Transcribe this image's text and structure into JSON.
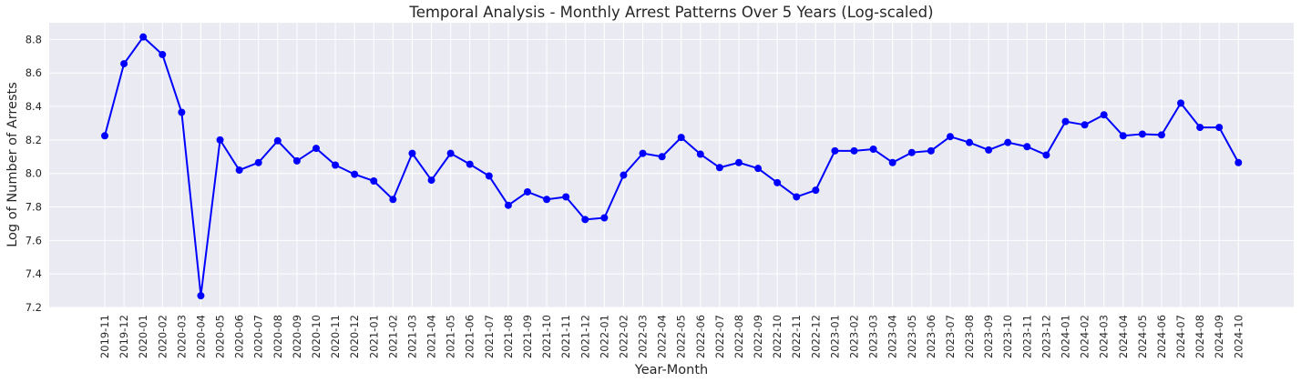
{
  "chart_data": {
    "type": "line",
    "title": "Temporal Analysis - Monthly Arrest Patterns Over 5 Years (Log-scaled)",
    "xlabel": "Year-Month",
    "ylabel": "Log of Number of Arrests",
    "ylim": [
      7.2,
      8.9
    ],
    "yticks": [
      7.2,
      7.4,
      7.6,
      7.8,
      8.0,
      8.2,
      8.4,
      8.6,
      8.8
    ],
    "ytick_labels": [
      "7.2",
      "7.4",
      "7.6",
      "7.8",
      "8.0",
      "8.2",
      "8.4",
      "8.6",
      "8.8"
    ],
    "grid": true,
    "legend": "none",
    "line_color": "#0000ff",
    "background_color": "#eaeaf2",
    "categories": [
      "2019-11",
      "2019-12",
      "2020-01",
      "2020-02",
      "2020-03",
      "2020-04",
      "2020-05",
      "2020-06",
      "2020-07",
      "2020-08",
      "2020-09",
      "2020-10",
      "2020-11",
      "2020-12",
      "2021-01",
      "2021-02",
      "2021-03",
      "2021-04",
      "2021-05",
      "2021-06",
      "2021-07",
      "2021-08",
      "2021-09",
      "2021-10",
      "2021-11",
      "2021-12",
      "2022-01",
      "2022-02",
      "2022-03",
      "2022-04",
      "2022-05",
      "2022-06",
      "2022-07",
      "2022-08",
      "2022-09",
      "2022-10",
      "2022-11",
      "2022-12",
      "2023-01",
      "2023-02",
      "2023-03",
      "2023-04",
      "2023-05",
      "2023-06",
      "2023-07",
      "2023-08",
      "2023-09",
      "2023-10",
      "2023-11",
      "2023-12",
      "2024-01",
      "2024-02",
      "2024-03",
      "2024-04",
      "2024-05",
      "2024-06",
      "2024-07",
      "2024-08",
      "2024-09",
      "2024-10"
    ],
    "values": [
      8.225,
      8.655,
      8.815,
      8.71,
      8.365,
      7.27,
      8.2,
      8.02,
      8.065,
      8.195,
      8.075,
      8.15,
      8.05,
      7.995,
      7.955,
      7.845,
      8.12,
      7.96,
      8.12,
      8.055,
      7.985,
      7.81,
      7.89,
      7.845,
      7.86,
      7.725,
      7.735,
      7.99,
      8.12,
      8.1,
      8.215,
      8.115,
      8.035,
      8.065,
      8.03,
      7.945,
      7.86,
      7.9,
      8.135,
      8.135,
      8.145,
      8.065,
      8.125,
      8.135,
      8.22,
      8.185,
      8.14,
      8.185,
      8.16,
      8.11,
      8.31,
      8.29,
      8.35,
      8.225,
      8.235,
      8.23,
      8.42,
      8.275,
      8.275,
      8.065
    ]
  }
}
